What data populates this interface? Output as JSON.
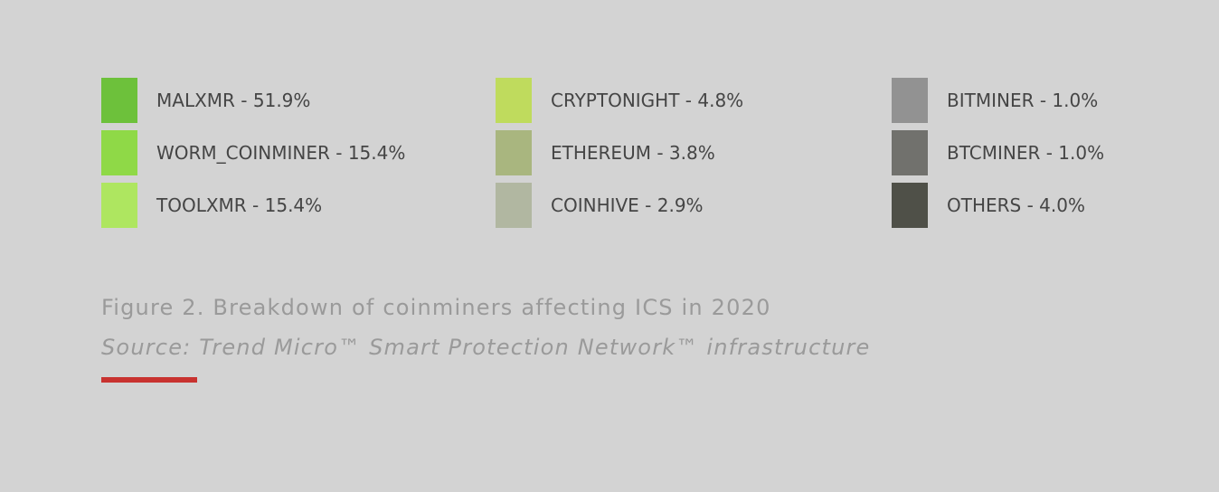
{
  "legend": {
    "columns": [
      {
        "items": [
          {
            "label": "MALXMR - 51.9%",
            "color": "#6dc13b"
          },
          {
            "label": "WORM_COINMINER - 15.4%",
            "color": "#8fd947"
          },
          {
            "label": "TOOLXMR - 15.4%",
            "color": "#aee660"
          }
        ]
      },
      {
        "items": [
          {
            "label": "CRYPTONIGHT - 4.8%",
            "color": "#bfdb5d"
          },
          {
            "label": "ETHEREUM - 3.8%",
            "color": "#a9b67f"
          },
          {
            "label": "COINHIVE - 2.9%",
            "color": "#b1b7a1"
          }
        ]
      },
      {
        "items": [
          {
            "label": "BITMINER - 1.0%",
            "color": "#929292"
          },
          {
            "label": "BTCMINER - 1.0%",
            "color": "#71716d"
          },
          {
            "label": "OTHERS - 4.0%",
            "color": "#4f5048"
          }
        ]
      }
    ]
  },
  "caption": {
    "title": "Figure 2. Breakdown of coinminers affecting ICS in 2020",
    "source": "Source: Trend Micro™ Smart Protection Network™ infrastructure"
  }
}
